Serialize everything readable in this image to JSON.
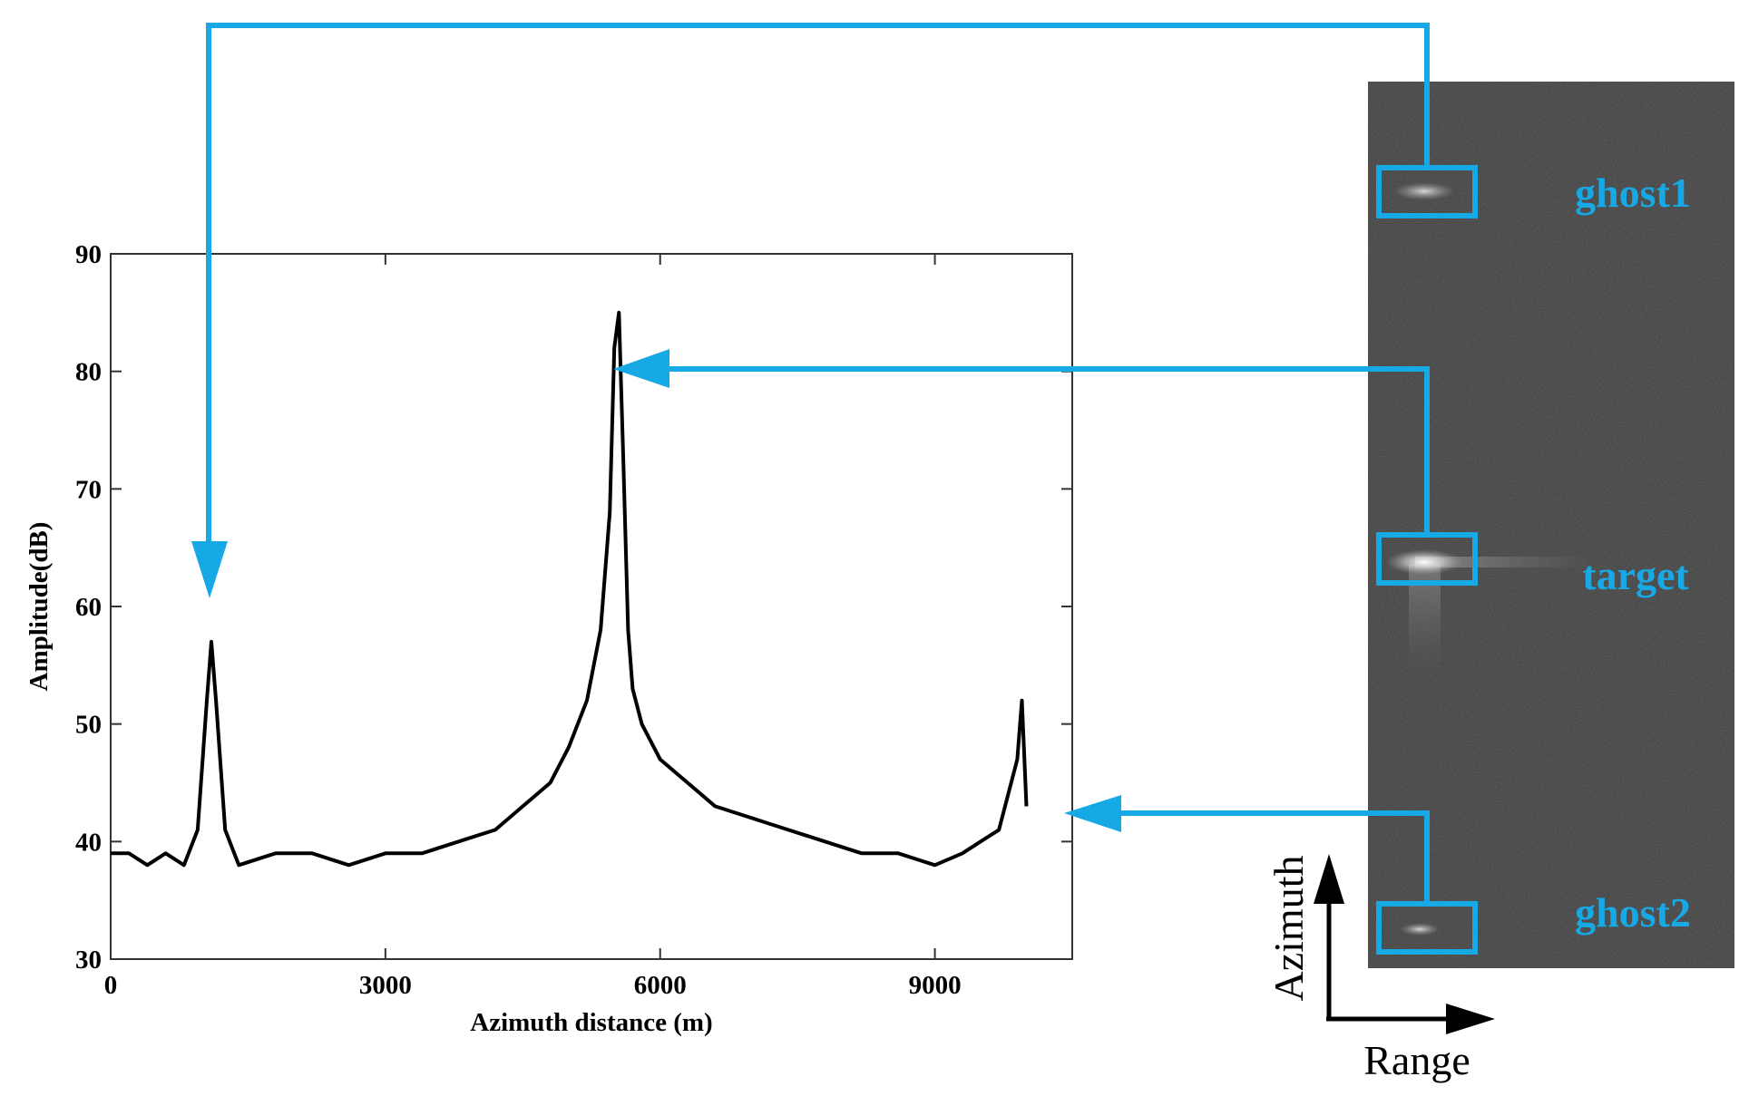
{
  "chart_data": {
    "type": "line",
    "xlabel": "Azimuth distance (m)",
    "ylabel": "Amplitude(dB)",
    "xlim": [
      0,
      10500
    ],
    "ylim": [
      30,
      90
    ],
    "xticks": [
      0,
      3000,
      6000,
      9000
    ],
    "xtick_labels": [
      "0",
      "3000",
      "6000",
      "9000"
    ],
    "yticks": [
      30,
      40,
      50,
      60,
      70,
      80,
      90
    ],
    "ytick_labels": [
      "30",
      "40",
      "50",
      "60",
      "70",
      "80",
      "90"
    ],
    "grid": false,
    "series": [
      {
        "x": [
          0,
          200,
          400,
          600,
          800,
          950,
          1050,
          1100,
          1150,
          1250,
          1400,
          1800,
          2200,
          2600,
          3000,
          3400,
          3800,
          4200,
          4500,
          4800,
          5000,
          5200,
          5350,
          5450,
          5500,
          5550,
          5600,
          5650,
          5700,
          5800,
          6000,
          6300,
          6600,
          7000,
          7400,
          7800,
          8200,
          8600,
          9000,
          9300,
          9500,
          9700,
          9800,
          9900,
          9950,
          10000
        ],
        "y": [
          39,
          39,
          38,
          39,
          38,
          41,
          52,
          57,
          52,
          41,
          38,
          39,
          39,
          38,
          39,
          39,
          40,
          41,
          43,
          45,
          48,
          52,
          58,
          68,
          82,
          85,
          72,
          58,
          53,
          50,
          47,
          45,
          43,
          42,
          41,
          40,
          39,
          39,
          38,
          39,
          40,
          41,
          44,
          47,
          52,
          43
        ]
      }
    ],
    "color": "#000000"
  },
  "sar_image": {
    "labels": {
      "ghost1": "ghost1",
      "target": "target",
      "ghost2": "ghost2"
    },
    "axes": {
      "vertical": "Azimuth",
      "horizontal": "Range"
    }
  },
  "colors": {
    "annotation": "#16a9e6",
    "curve": "#000000",
    "image_background": "#3a3a3a"
  }
}
